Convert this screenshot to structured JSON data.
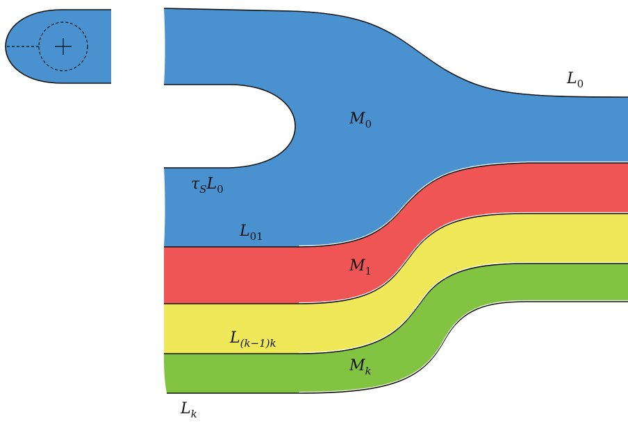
{
  "diagram": {
    "colors": {
      "blue": "#4a91cf",
      "red": "#ef5555",
      "yellow": "#efe858",
      "green": "#82c342",
      "stroke": "#111111"
    },
    "regions": {
      "m0": {
        "base": "M",
        "sub": "0"
      },
      "m1": {
        "base": "M",
        "sub": "1"
      },
      "mk": {
        "base": "M",
        "sub": "k"
      }
    },
    "curves": {
      "l0_top": {
        "base": "L",
        "sub": "0"
      },
      "tau_l0": {
        "base": "τ",
        "sub": "S",
        "rest": "L",
        "rest_sub": "0"
      },
      "l01": {
        "base": "L",
        "sub": "01"
      },
      "lk1k": {
        "base": "L",
        "sub": "(k−1)k"
      },
      "lk": {
        "base": "L",
        "sub": "k"
      }
    }
  }
}
